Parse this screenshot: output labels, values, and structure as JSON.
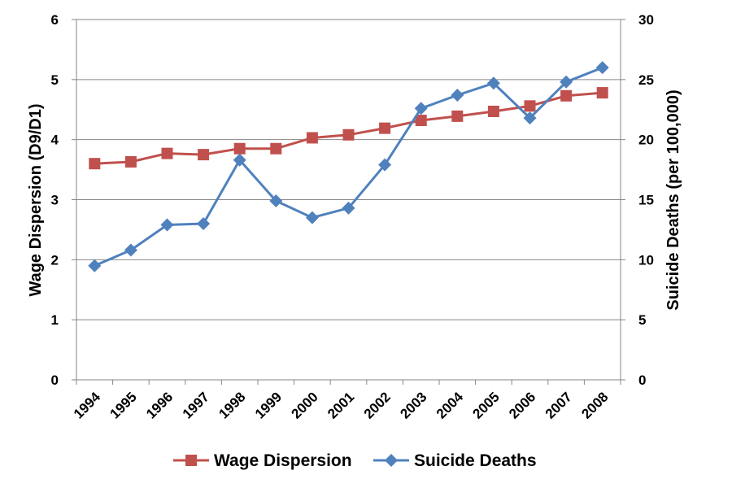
{
  "chart_data": {
    "type": "line",
    "categories": [
      "1994",
      "1995",
      "1996",
      "1997",
      "1998",
      "1999",
      "2000",
      "2001",
      "2002",
      "2003",
      "2004",
      "2005",
      "2006",
      "2007",
      "2008"
    ],
    "series": [
      {
        "name": "Wage Dispersion",
        "axis": "left",
        "color": "#C0504D",
        "marker": "square",
        "values": [
          3.6,
          3.63,
          3.77,
          3.75,
          3.85,
          3.85,
          4.03,
          4.08,
          4.19,
          4.32,
          4.39,
          4.47,
          4.56,
          4.73,
          4.78
        ]
      },
      {
        "name": "Suicide Deaths",
        "axis": "right",
        "color": "#4F81BD",
        "marker": "diamond",
        "values": [
          9.5,
          10.8,
          12.9,
          13.0,
          18.3,
          14.9,
          13.5,
          14.3,
          17.9,
          22.6,
          23.7,
          24.7,
          21.8,
          24.8,
          26.0
        ]
      }
    ],
    "ylabel": "Wage Dispersion (D9/D1)",
    "ylabel_right": "Suicide Deaths (per 100,000)",
    "ylim": [
      0,
      6
    ],
    "ylim_right": [
      0,
      30
    ],
    "yticks": [
      "0",
      "1",
      "2",
      "3",
      "4",
      "5",
      "6"
    ],
    "yticks_right": [
      "0",
      "5",
      "10",
      "15",
      "20",
      "25",
      "30"
    ],
    "grid": "horizontal",
    "legend": "bottom"
  }
}
